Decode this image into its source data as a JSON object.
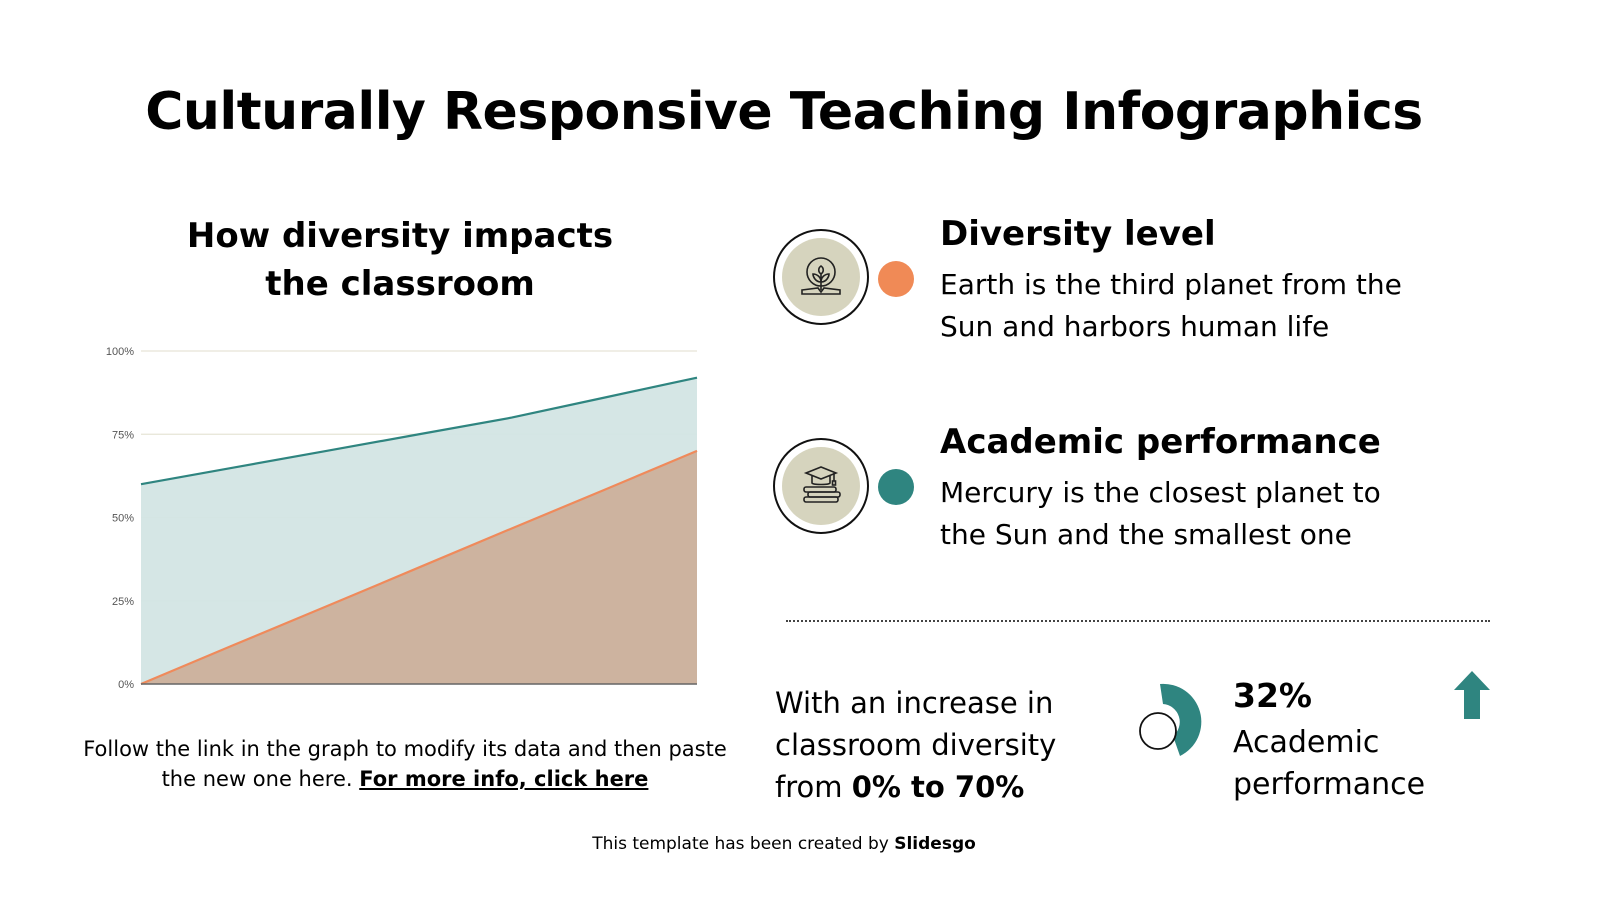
{
  "slide": {
    "title": "Culturally Responsive Teaching Infographics"
  },
  "left_panel": {
    "chart_title_line1": "How diversity impacts",
    "chart_title_line2": "the classroom",
    "caption_text": "Follow the link in the graph to modify its data and then paste the new one here. ",
    "caption_link": "For more info, click here"
  },
  "chart_data": {
    "type": "area",
    "title": "How diversity impacts the classroom",
    "xlabel": "",
    "ylabel": "",
    "y_ticks": [
      "0%",
      "25%",
      "50%",
      "75%",
      "100%"
    ],
    "ylim": [
      0,
      100
    ],
    "grid": true,
    "legend": "none",
    "x": [
      0,
      1,
      2,
      3,
      4,
      5,
      6
    ],
    "series": [
      {
        "name": "Academic performance",
        "color": "#2f8580",
        "fill": "#d3e5e4",
        "values": [
          60,
          65,
          70,
          75,
          80,
          86,
          92
        ]
      },
      {
        "name": "Diversity level",
        "color": "#ef8a5b",
        "fill": "#ccb09b",
        "values": [
          0,
          11.7,
          23.3,
          35,
          46.7,
          58.3,
          70
        ]
      }
    ]
  },
  "items": [
    {
      "title": "Diversity level",
      "desc_line1": "Earth is the third planet from the",
      "desc_line2": "Sun and harbors human life",
      "icon": "globe-plant-book-icon",
      "dot_color": "#f08a56"
    },
    {
      "title": "Academic performance",
      "desc_line1": "Mercury is the closest planet to",
      "desc_line2": "the Sun and the smallest one",
      "icon": "graduation-cap-books-icon",
      "dot_color": "#2f8580"
    }
  ],
  "stat": {
    "line1": "With an increase in",
    "line2": "classroom diversity",
    "line3_prefix": "from ",
    "line3_bold": "0% to 70%",
    "percent": "32%",
    "label_line1": "Academic",
    "label_line2": "performance",
    "accent": "#2f8580"
  },
  "footer": {
    "text": "This template has been created by ",
    "brand": "Slidesgo"
  }
}
